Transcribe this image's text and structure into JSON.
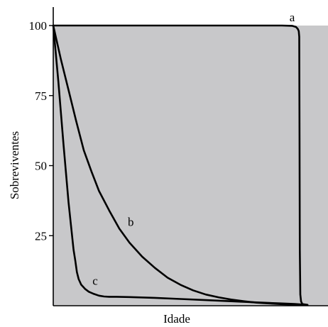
{
  "chart_data": {
    "type": "line",
    "xlabel": "Idade",
    "ylabel": "Sobreviventes",
    "xlim": [
      0,
      100
    ],
    "ylim": [
      0,
      100
    ],
    "yticks": [
      25,
      50,
      75,
      100
    ],
    "grid": false,
    "legend": "none",
    "background_color": "#c8c8ca",
    "line_color": "#000000",
    "series": [
      {
        "name": "a",
        "x": [
          0,
          10,
          20,
          30,
          40,
          50,
          60,
          70,
          80,
          90,
          94,
          95.5,
          96.2,
          96.6,
          96.8,
          96.9,
          97,
          97.2,
          97.5,
          98,
          100
        ],
        "y": [
          100,
          100,
          100,
          100,
          100,
          100,
          100,
          100,
          100,
          100,
          99.9,
          99.5,
          98.8,
          98,
          96,
          60,
          20,
          4,
          1.5,
          0.6,
          0.3
        ]
      },
      {
        "name": "b",
        "x": [
          0,
          3,
          6,
          9,
          12,
          15,
          18,
          22,
          26,
          30,
          35,
          40,
          45,
          50,
          55,
          60,
          65,
          70,
          75,
          80,
          85,
          90,
          95,
          100
        ],
        "y": [
          100,
          88,
          77,
          66,
          55.5,
          48,
          41,
          34,
          27.5,
          22.5,
          17.5,
          13.5,
          10,
          7.5,
          5.5,
          4,
          3,
          2.2,
          1.6,
          1.1,
          0.8,
          0.55,
          0.35,
          0.3
        ]
      },
      {
        "name": "c",
        "x": [
          0,
          2,
          4,
          6,
          8,
          8.7,
          9.3,
          10,
          11,
          12.5,
          14,
          16,
          18,
          20,
          22,
          25,
          30,
          40,
          50,
          60,
          70,
          80,
          90,
          95,
          100
        ],
        "y": [
          100,
          80,
          58,
          37,
          20,
          16,
          12,
          9.5,
          7.5,
          6,
          5,
          4.2,
          3.6,
          3.3,
          3.2,
          3.2,
          3.1,
          2.8,
          2.4,
          2,
          1.6,
          1.2,
          0.8,
          0.6,
          0.3
        ]
      }
    ],
    "annotations": [
      {
        "text": "a",
        "series": "a",
        "x": 94,
        "y": 103
      },
      {
        "text": "b",
        "series": "b",
        "x": 30.5,
        "y": 30
      },
      {
        "text": "c",
        "series": "c",
        "x": 16.5,
        "y": 9
      }
    ]
  }
}
